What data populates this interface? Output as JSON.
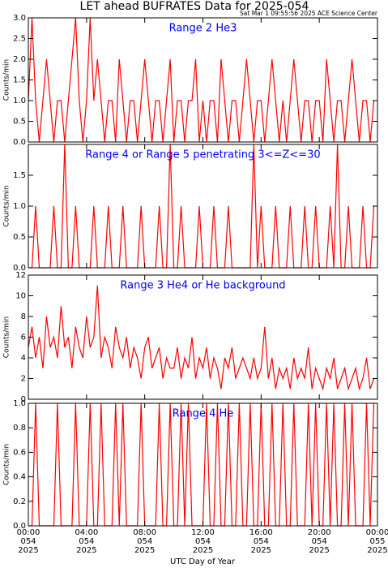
{
  "title": "LET ahead BUFRATES Data for 2025-054",
  "subtitle": "Sat Mar  1 09:55:56 2025 ACE Science Center",
  "x_label": "UTC Day of Year",
  "chart_data": [
    {
      "type": "line",
      "title": "Range 2 He3",
      "y_label": "Counts/min",
      "color": "#ff0000",
      "x": [
        0,
        0.25,
        0.5,
        0.75,
        1,
        1.25,
        1.5,
        1.75,
        2,
        2.25,
        2.5,
        2.75,
        3,
        3.25,
        3.5,
        3.75,
        4,
        4.25,
        4.5,
        4.75,
        5,
        5.25,
        5.5,
        5.75,
        6,
        6.25,
        6.5,
        6.75,
        7,
        7.25,
        7.5,
        7.75,
        8,
        8.25,
        8.5,
        8.75,
        9,
        9.25,
        9.5,
        9.75,
        10,
        10.25,
        10.5,
        10.75,
        11,
        11.25,
        11.5,
        11.75,
        12,
        12.25,
        12.5,
        12.75,
        13,
        13.25,
        13.5,
        13.75,
        14,
        14.25,
        14.5,
        14.75,
        15,
        15.25,
        15.5,
        15.75,
        16,
        16.25,
        16.5,
        16.75,
        17,
        17.25,
        17.5,
        17.75,
        18,
        18.25,
        18.5,
        18.75,
        19,
        19.25,
        19.5,
        19.75,
        20,
        20.25,
        20.5,
        20.75,
        21,
        21.25,
        21.5,
        21.75,
        22,
        22.25,
        22.5,
        22.75,
        23,
        23.25,
        23.5,
        23.75
      ],
      "values": [
        1,
        3,
        1,
        0,
        1,
        2,
        1,
        0,
        1,
        1,
        0,
        1,
        2,
        3,
        1,
        0,
        1,
        3,
        1,
        2,
        1,
        0,
        1,
        1,
        0,
        2,
        1,
        0,
        1,
        1,
        0,
        1,
        2,
        1,
        0,
        1,
        1,
        0,
        1,
        2,
        0,
        1,
        1,
        0,
        1,
        1,
        2,
        0,
        1,
        0,
        1,
        1,
        0,
        2,
        1,
        0,
        1,
        1,
        0,
        1,
        2,
        1,
        0,
        1,
        1,
        0,
        1,
        2,
        1,
        0,
        1,
        0,
        1,
        2,
        1,
        0,
        1,
        1,
        0,
        1,
        1,
        0,
        2,
        1,
        0,
        1,
        1,
        0,
        1,
        2,
        1,
        0,
        1,
        1,
        0,
        1
      ],
      "xlim": [
        0,
        24
      ],
      "xticks": [
        0,
        4,
        8,
        12,
        16,
        20,
        24
      ],
      "ylim": [
        0,
        3
      ],
      "yticks": [
        {
          "value": 0,
          "label": "0.0"
        },
        {
          "value": 0.5,
          "label": "0.5"
        },
        {
          "value": 1,
          "label": "1.0"
        },
        {
          "value": 1.5,
          "label": "1.5"
        },
        {
          "value": 2,
          "label": "2.0"
        },
        {
          "value": 2.5,
          "label": "2.5"
        },
        {
          "value": 3,
          "label": "3.0"
        }
      ]
    },
    {
      "type": "line",
      "title": "Range 4 or Range 5 penetrating 3<=Z<=30",
      "y_label": "Counts/min",
      "color": "#ff0000",
      "x": [
        0,
        0.25,
        0.5,
        0.75,
        1,
        1.25,
        1.5,
        1.75,
        2,
        2.25,
        2.5,
        2.75,
        3,
        3.25,
        3.5,
        3.75,
        4,
        4.25,
        4.5,
        4.75,
        5,
        5.25,
        5.5,
        5.75,
        6,
        6.25,
        6.5,
        6.75,
        7,
        7.25,
        7.5,
        7.75,
        8,
        8.25,
        8.5,
        8.75,
        9,
        9.25,
        9.5,
        9.75,
        10,
        10.25,
        10.5,
        10.75,
        11,
        11.25,
        11.5,
        11.75,
        12,
        12.25,
        12.5,
        12.75,
        13,
        13.25,
        13.5,
        13.75,
        14,
        14.25,
        14.5,
        14.75,
        15,
        15.25,
        15.5,
        15.75,
        16,
        16.25,
        16.5,
        16.75,
        17,
        17.25,
        17.5,
        17.75,
        18,
        18.25,
        18.5,
        18.75,
        19,
        19.25,
        19.5,
        19.75,
        20,
        20.25,
        20.5,
        20.75,
        21,
        21.25,
        21.5,
        21.75,
        22,
        22.25,
        22.5,
        22.75,
        23,
        23.25,
        23.5,
        23.75
      ],
      "values": [
        0,
        0,
        1,
        0,
        0,
        0,
        0,
        1,
        0,
        0,
        2,
        0,
        0,
        1,
        0,
        0,
        0,
        0,
        1,
        0,
        0,
        0,
        1,
        0,
        0,
        0,
        1,
        0,
        0,
        0,
        0,
        1,
        0,
        0,
        0,
        0,
        1,
        0,
        0,
        2,
        0,
        0,
        1,
        0,
        0,
        0,
        0,
        1,
        0,
        0,
        0,
        1,
        0,
        0,
        0,
        1,
        0,
        0,
        0,
        0,
        0,
        0,
        2,
        0,
        1,
        0,
        0,
        0,
        1,
        0,
        0,
        0,
        1,
        0,
        0,
        0,
        1,
        0,
        0,
        1,
        0,
        0,
        0,
        1,
        0,
        2,
        0,
        0,
        1,
        0,
        0,
        0,
        1,
        0,
        0,
        1
      ],
      "xlim": [
        0,
        24
      ],
      "xticks": [
        0,
        4,
        8,
        12,
        16,
        20,
        24
      ],
      "ylim": [
        0,
        2
      ],
      "yticks": [
        {
          "value": 0,
          "label": "0.0"
        },
        {
          "value": 0.5,
          "label": "0.5"
        },
        {
          "value": 1,
          "label": "1.0"
        },
        {
          "value": 1.5,
          "label": "1.5"
        }
      ]
    },
    {
      "type": "line",
      "title": "Range 3 He4 or He background",
      "y_label": "Counts/min",
      "color": "#ff0000",
      "x": [
        0,
        0.25,
        0.5,
        0.75,
        1,
        1.25,
        1.5,
        1.75,
        2,
        2.25,
        2.5,
        2.75,
        3,
        3.25,
        3.5,
        3.75,
        4,
        4.25,
        4.5,
        4.75,
        5,
        5.25,
        5.5,
        5.75,
        6,
        6.25,
        6.5,
        6.75,
        7,
        7.25,
        7.5,
        7.75,
        8,
        8.25,
        8.5,
        8.75,
        9,
        9.25,
        9.5,
        9.75,
        10,
        10.25,
        10.5,
        10.75,
        11,
        11.25,
        11.5,
        11.75,
        12,
        12.25,
        12.5,
        12.75,
        13,
        13.25,
        13.5,
        13.75,
        14,
        14.25,
        14.5,
        14.75,
        15,
        15.25,
        15.5,
        15.75,
        16,
        16.25,
        16.5,
        16.75,
        17,
        17.25,
        17.5,
        17.75,
        18,
        18.25,
        18.5,
        18.75,
        19,
        19.25,
        19.5,
        19.75,
        20,
        20.25,
        20.5,
        20.75,
        21,
        21.25,
        21.5,
        21.75,
        22,
        22.25,
        22.5,
        22.75,
        23,
        23.25,
        23.5,
        23.75
      ],
      "values": [
        5,
        7,
        4,
        6,
        3,
        8,
        5,
        6,
        4,
        9,
        5,
        6,
        3,
        7,
        5,
        4,
        8,
        5,
        6,
        11,
        4,
        6,
        5,
        3,
        7,
        5,
        4,
        6,
        3,
        5,
        4,
        2,
        5,
        6,
        3,
        4,
        5,
        2,
        4,
        3,
        3,
        5,
        2,
        4,
        3,
        6,
        2,
        4,
        3,
        5,
        2,
        4,
        3,
        1,
        4,
        3,
        5,
        2,
        3,
        4,
        3,
        2,
        4,
        2,
        3,
        7,
        2,
        4,
        1,
        3,
        2,
        3,
        1,
        4,
        2,
        3,
        2,
        5,
        1,
        3,
        2,
        1,
        3,
        2,
        4,
        1,
        2,
        3,
        1,
        2,
        3,
        1,
        2,
        4,
        1,
        2
      ],
      "xlim": [
        0,
        24
      ],
      "xticks": [
        0,
        4,
        8,
        12,
        16,
        20,
        24
      ],
      "ylim": [
        0,
        12
      ],
      "yticks": [
        0,
        2,
        4,
        6,
        8,
        10,
        12
      ]
    },
    {
      "type": "line",
      "title": "Range 4 He",
      "y_label": "Counts/min",
      "color": "#ff0000",
      "x": [
        0,
        0.25,
        0.5,
        0.75,
        1,
        1.25,
        1.5,
        1.75,
        2,
        2.25,
        2.5,
        2.75,
        3,
        3.25,
        3.5,
        3.75,
        4,
        4.25,
        4.5,
        4.75,
        5,
        5.25,
        5.5,
        5.75,
        6,
        6.25,
        6.5,
        6.75,
        7,
        7.25,
        7.5,
        7.75,
        8,
        8.25,
        8.5,
        8.75,
        9,
        9.25,
        9.5,
        9.75,
        10,
        10.25,
        10.5,
        10.75,
        11,
        11.25,
        11.5,
        11.75,
        12,
        12.25,
        12.5,
        12.75,
        13,
        13.25,
        13.5,
        13.75,
        14,
        14.25,
        14.5,
        14.75,
        15,
        15.25,
        15.5,
        15.75,
        16,
        16.25,
        16.5,
        16.75,
        17,
        17.25,
        17.5,
        17.75,
        18,
        18.25,
        18.5,
        18.75,
        19,
        19.25,
        19.5,
        19.75,
        20,
        20.25,
        20.5,
        20.75,
        21,
        21.25,
        21.5,
        21.75,
        22,
        22.25,
        22.5,
        22.75,
        23,
        23.25,
        23.5,
        23.75
      ],
      "values": [
        0,
        0,
        1,
        0,
        0,
        0,
        0,
        0,
        1,
        0,
        0,
        0,
        0,
        1,
        0,
        0,
        0,
        1,
        0,
        0,
        1,
        0,
        0,
        0,
        1,
        0,
        1,
        0,
        0,
        0,
        0,
        1,
        0,
        0,
        0,
        0,
        1,
        0,
        0,
        1,
        0,
        0,
        1,
        0,
        1,
        0,
        0,
        0,
        0,
        1,
        0,
        0,
        1,
        0,
        0,
        1,
        0,
        0,
        1,
        0,
        0,
        1,
        0,
        0,
        1,
        0,
        0,
        1,
        0,
        0,
        1,
        0,
        0,
        1,
        0,
        0,
        0,
        1,
        0,
        1,
        0,
        0,
        1,
        0,
        1,
        0,
        0,
        1,
        0,
        1,
        0,
        0,
        0,
        1,
        0,
        1
      ],
      "xlim": [
        0,
        24
      ],
      "xticks": [
        {
          "value": 0,
          "label": [
            "00:00",
            "054",
            "2025"
          ]
        },
        {
          "value": 4,
          "label": [
            "04:00",
            "054",
            "2025"
          ]
        },
        {
          "value": 8,
          "label": [
            "08:00",
            "054",
            "2025"
          ]
        },
        {
          "value": 12,
          "label": [
            "12:00",
            "054",
            "2025"
          ]
        },
        {
          "value": 16,
          "label": [
            "16:00",
            "054",
            "2025"
          ]
        },
        {
          "value": 20,
          "label": [
            "20:00",
            "054",
            "2025"
          ]
        },
        {
          "value": 24,
          "label": [
            "00:00",
            "055",
            "2025"
          ]
        }
      ],
      "ylim": [
        0,
        1
      ],
      "yticks": [
        {
          "value": 0,
          "label": "0.0"
        },
        {
          "value": 0.2,
          "label": "0.2"
        },
        {
          "value": 0.4,
          "label": "0.4"
        },
        {
          "value": 0.6,
          "label": "0.6"
        },
        {
          "value": 0.8,
          "label": "0.8"
        },
        {
          "value": 1,
          "label": "1.0"
        }
      ]
    }
  ]
}
